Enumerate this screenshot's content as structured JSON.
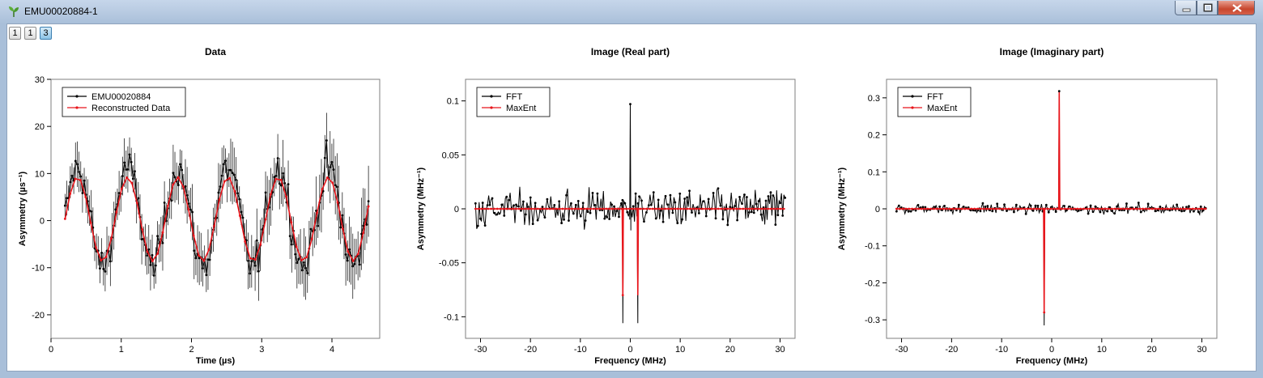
{
  "window": {
    "title": "EMU00020884-1",
    "icons": {
      "app": "sprout-icon",
      "minimize": "minimize-icon",
      "maximize": "maximize-icon",
      "close": "close-icon"
    }
  },
  "toolbar": {
    "buttons": [
      "1",
      "1",
      "3"
    ],
    "active_index": 2
  },
  "colors": {
    "data": "#000000",
    "fit": "#e8151b",
    "frame": "#7f7f7f"
  },
  "chart_data": [
    {
      "type": "line",
      "title": "Data",
      "xlabel": "Time (µs)",
      "ylabel": "Asymmetry (µs⁻¹)",
      "xlim": [
        0,
        4.68
      ],
      "ylim": [
        -25,
        30
      ],
      "xticks": [
        0,
        1,
        2,
        3,
        4
      ],
      "yticks": [
        -20,
        -10,
        0,
        10,
        20,
        30
      ],
      "legend": "top-left",
      "series": [
        {
          "name": "EMU00020884",
          "role": "data",
          "errorbars": true,
          "model": {
            "offset": 0.8,
            "amplitude": 10.4,
            "frequency": 1.4,
            "phase": -1.75,
            "noise": 3.1,
            "t_start": 0.2,
            "t_end": 4.52,
            "n": 175
          }
        },
        {
          "name": "Reconstructed Data",
          "role": "fit",
          "model": {
            "offset": 0.3,
            "amplitude": 8.9,
            "frequency": 1.4,
            "phase": -1.75,
            "t_start": 0.2,
            "t_end": 4.52,
            "n": 60
          }
        }
      ]
    },
    {
      "type": "line",
      "title": "Image (Real part)",
      "xlabel": "Frequency (MHz)",
      "ylabel": "Asymmetry (MHz⁻¹)",
      "xlim": [
        -33,
        33
      ],
      "ylim": [
        -0.12,
        0.12
      ],
      "xticks": [
        -30,
        -20,
        -10,
        0,
        10,
        20,
        30
      ],
      "yticks": [
        -0.1,
        -0.05,
        0,
        0.05,
        0.1
      ],
      "legend": "top-left",
      "series": [
        {
          "name": "FFT",
          "role": "data",
          "noise": 0.016,
          "range": [
            -31,
            31
          ],
          "n": 260,
          "peaks": [
            [
              -1.5,
              -0.106
            ],
            [
              0.0,
              0.097
            ],
            [
              1.5,
              -0.106
            ]
          ]
        },
        {
          "name": "MaxEnt",
          "role": "fit",
          "range": [
            -31,
            31
          ],
          "n": 200,
          "peaks": [
            [
              -1.5,
              -0.08
            ],
            [
              1.5,
              -0.08
            ]
          ]
        }
      ]
    },
    {
      "type": "line",
      "title": "Image (Imaginary part)",
      "xlabel": "Frequency (MHz)",
      "ylabel": "Asymmetry (MHz⁻¹)",
      "xlim": [
        -33,
        33
      ],
      "ylim": [
        -0.35,
        0.35
      ],
      "xticks": [
        -30,
        -20,
        -10,
        0,
        10,
        20,
        30
      ],
      "yticks": [
        -0.3,
        -0.2,
        -0.1,
        0,
        0.1,
        0.2,
        0.3
      ],
      "legend": "top-left",
      "series": [
        {
          "name": "FFT",
          "role": "data",
          "noise": 0.011,
          "range": [
            -31,
            31
          ],
          "n": 260,
          "peaks": [
            [
              -1.5,
              -0.315
            ],
            [
              1.5,
              0.318
            ]
          ]
        },
        {
          "name": "MaxEnt",
          "role": "fit",
          "range": [
            -31,
            31
          ],
          "n": 200,
          "peaks": [
            [
              -1.5,
              -0.28
            ],
            [
              1.5,
              0.315
            ]
          ]
        }
      ]
    }
  ]
}
